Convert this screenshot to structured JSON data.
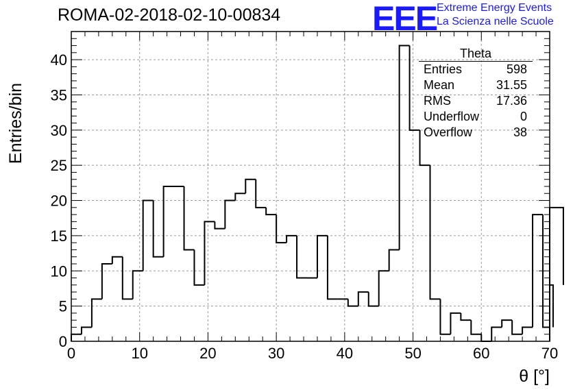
{
  "header": {
    "title": "ROMA-02-2018-02-10-00834",
    "logo": "EEE",
    "logo_line1": "Extreme Energy Events",
    "logo_line2": "La Scienza nelle Scuole"
  },
  "stats_box": {
    "title": "Theta",
    "rows": [
      {
        "label": "Entries",
        "value": "598"
      },
      {
        "label": "Mean",
        "value": "31.55"
      },
      {
        "label": "RMS",
        "value": "17.36"
      },
      {
        "label": "Underflow",
        "value": "0"
      },
      {
        "label": "Overflow",
        "value": "38"
      }
    ]
  },
  "chart_data": {
    "type": "histogram",
    "title": "ROMA-02-2018-02-10-00834",
    "xlabel": "θ [°]",
    "ylabel": "Entries/bin",
    "xlim": [
      0,
      70
    ],
    "ylim": [
      0,
      44
    ],
    "bin_width": 1.5,
    "bin_start": 0,
    "values": [
      1,
      2,
      6,
      11,
      12,
      6,
      10,
      20,
      12,
      22,
      22,
      13,
      8,
      17,
      16,
      20,
      21,
      23,
      19,
      18,
      14,
      15,
      9,
      9,
      15,
      6,
      6,
      5,
      7,
      5,
      10,
      13,
      42,
      30,
      25,
      6,
      1,
      4,
      3,
      1,
      0,
      2,
      3,
      1,
      2,
      18,
      2,
      8,
      19
    ],
    "xticks": [
      0,
      10,
      20,
      30,
      40,
      50,
      60,
      70
    ],
    "yticks": [
      0,
      5,
      10,
      15,
      20,
      25,
      30,
      35,
      40
    ],
    "grid": true,
    "line_color": "#000000"
  }
}
